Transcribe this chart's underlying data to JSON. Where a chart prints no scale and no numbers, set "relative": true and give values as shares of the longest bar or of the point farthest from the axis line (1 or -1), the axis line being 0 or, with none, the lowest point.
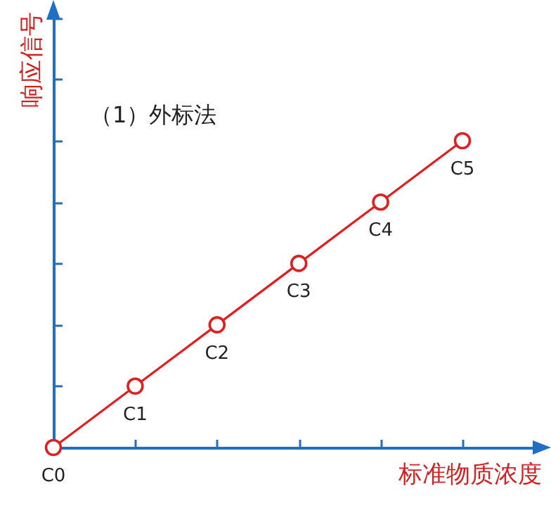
{
  "chart_data": {
    "type": "line",
    "title": "（1）外标法",
    "xlabel": "标准物质浓度",
    "ylabel": "响应信号",
    "categories": [
      "C0",
      "C1",
      "C2",
      "C3",
      "C4",
      "C5"
    ],
    "series": [
      {
        "color": "#e02020",
        "values": [
          0,
          0.2,
          0.4,
          0.6,
          0.8,
          1
        ]
      }
    ],
    "relative": true,
    "marker": "circle",
    "line_style": "solid",
    "grid": false,
    "legend": false
  }
}
